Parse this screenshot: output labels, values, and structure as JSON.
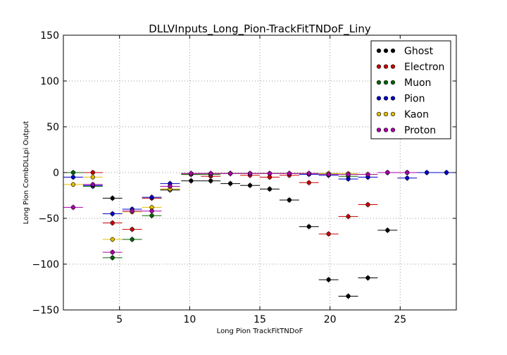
{
  "chart_data": {
    "type": "scatter",
    "title": "DLLVInputs_Long_Pion-TrackFitTNDoF_Liny",
    "xlabel": "Long Pion TrackFitTNDoF",
    "ylabel": "Long Pion CombDLLpi Output",
    "xlim": [
      1,
      29
    ],
    "ylim": [
      -150,
      150
    ],
    "xticks": [
      5,
      10,
      15,
      20,
      25
    ],
    "yticks": [
      -150,
      -100,
      -50,
      0,
      50,
      100,
      150
    ],
    "grid": true,
    "legend_position": "top-right",
    "x_error": 0.7,
    "series": [
      {
        "name": "Ghost",
        "color": "#000000",
        "x": [
          4.5,
          8.6,
          10.1,
          11.5,
          12.9,
          14.3,
          15.7,
          17.1,
          18.5,
          19.9,
          21.3,
          22.7,
          24.1,
          25.5
        ],
        "y": [
          -28,
          -19,
          -9,
          -9,
          -12,
          -14,
          -18,
          -30,
          -59,
          -117,
          -135,
          -115,
          -63,
          0
        ]
      },
      {
        "name": "Electron",
        "color": "#cc0000",
        "x": [
          3.1,
          4.5,
          5.9,
          7.3,
          8.6,
          10.1,
          11.5,
          12.9,
          14.3,
          15.7,
          17.1,
          18.5,
          19.9,
          21.3,
          22.7,
          24.1
        ],
        "y": [
          0,
          -55,
          -62,
          -28,
          -15,
          -2,
          -4,
          -1,
          -3,
          -5,
          -3,
          -11,
          -67,
          -48,
          -35,
          0
        ]
      },
      {
        "name": "Muon",
        "color": "#006600",
        "x": [
          1.7,
          3.1,
          4.5,
          5.9,
          7.3,
          8.6,
          10.1,
          11.5,
          12.9,
          14.3,
          15.7,
          17.1,
          18.5,
          19.9,
          21.3,
          22.7
        ],
        "y": [
          0,
          -15,
          -93,
          -73,
          -47,
          -18,
          -2,
          -2,
          -1,
          -1,
          -1,
          -1,
          -1,
          -1,
          -4,
          -5
        ]
      },
      {
        "name": "Pion",
        "color": "#0000cc",
        "x": [
          1.7,
          3.1,
          4.5,
          5.9,
          7.3,
          8.6,
          10.1,
          11.5,
          12.9,
          14.3,
          15.7,
          17.1,
          18.5,
          19.9,
          21.3,
          22.7,
          24.1,
          25.5,
          26.9,
          28.3
        ],
        "y": [
          -5,
          -14,
          -45,
          -40,
          -27,
          -12,
          -1,
          -1,
          -1,
          -1,
          -1,
          -1,
          -2,
          -3,
          -7,
          -5,
          0,
          -6,
          0,
          0
        ]
      },
      {
        "name": "Kaon",
        "color": "#e6c000",
        "x": [
          1.7,
          3.1,
          4.5,
          5.9,
          7.3,
          8.6,
          10.1,
          11.5,
          12.9,
          14.3,
          15.7,
          17.1,
          18.5,
          19.9,
          21.3,
          22.7
        ],
        "y": [
          -13,
          -5,
          -73,
          -43,
          -38,
          -18,
          -1,
          -1,
          -1,
          -1,
          -1,
          -1,
          -1,
          -1,
          -1,
          -2
        ]
      },
      {
        "name": "Proton",
        "color": "#aa00aa",
        "x": [
          1.7,
          3.1,
          4.5,
          5.9,
          7.3,
          8.6,
          10.1,
          11.5,
          12.9,
          14.3,
          15.7,
          17.1,
          18.5,
          19.9,
          21.3,
          22.7,
          24.1,
          25.5
        ],
        "y": [
          -38,
          -13,
          -87,
          -42,
          -42,
          -15,
          -1,
          -1,
          -1,
          -1,
          -1,
          -1,
          -1,
          -2,
          -2,
          -2,
          0,
          0
        ]
      }
    ]
  }
}
